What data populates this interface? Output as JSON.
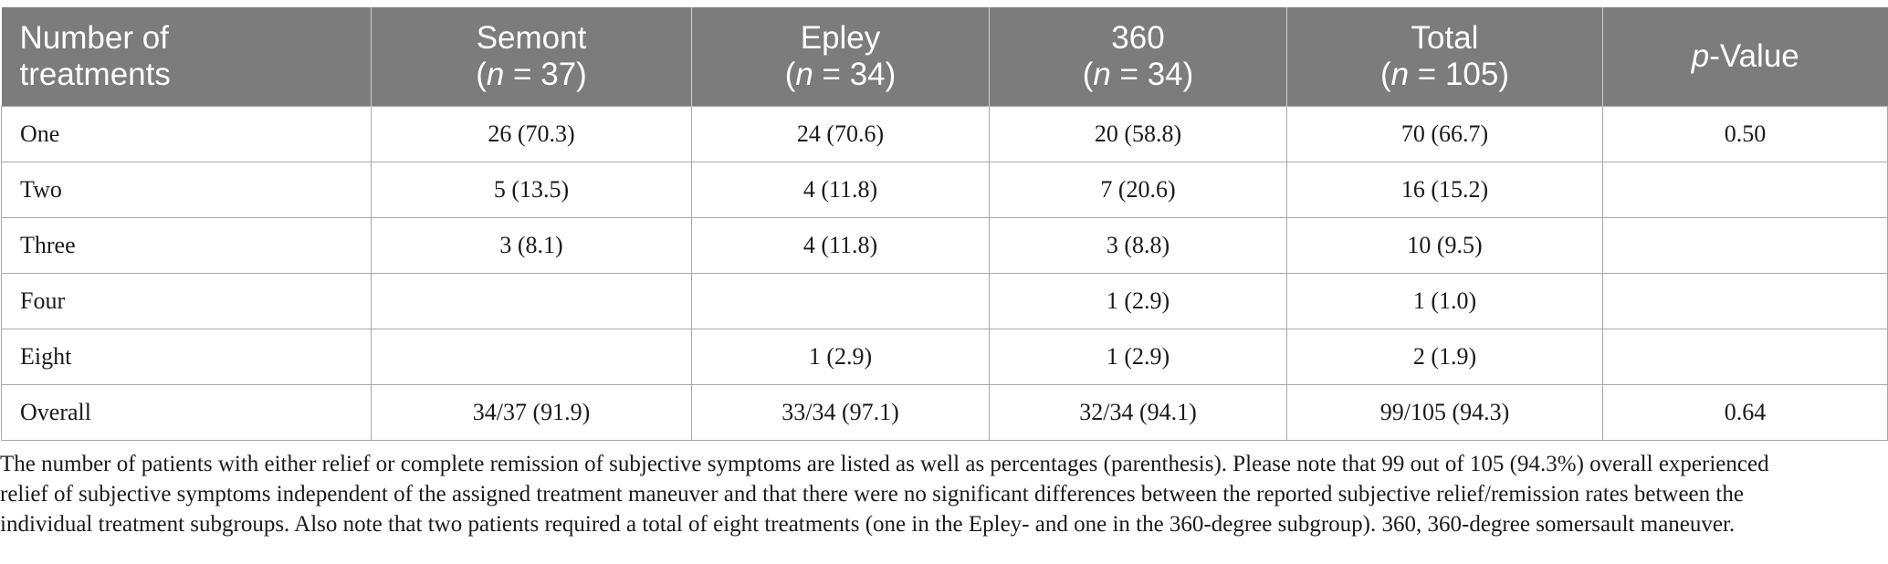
{
  "table": {
    "headers": [
      {
        "line1": "Number of",
        "line2": "treatments",
        "italic_n": ""
      },
      {
        "line1": "Semont",
        "line2_italic": "n",
        "line2_rest": " = 37)",
        "line2_open": "("
      },
      {
        "line1": "Epley",
        "line2_italic": "n",
        "line2_rest": " = 34)",
        "line2_open": "("
      },
      {
        "line1": "360",
        "line2_italic": "n",
        "line2_rest": " = 34)",
        "line2_open": "("
      },
      {
        "line1": "Total",
        "line2_italic": "n",
        "line2_rest": " = 105)",
        "line2_open": "("
      },
      {
        "italic": "p",
        "rest": "-Value"
      }
    ],
    "rows": [
      [
        "One",
        "26 (70.3)",
        "24 (70.6)",
        "20 (58.8)",
        "70 (66.7)",
        "0.50"
      ],
      [
        "Two",
        "5 (13.5)",
        "4 (11.8)",
        "7 (20.6)",
        "16 (15.2)",
        ""
      ],
      [
        "Three",
        "3 (8.1)",
        "4 (11.8)",
        "3 (8.8)",
        "10 (9.5)",
        ""
      ],
      [
        "Four",
        "",
        "",
        "1 (2.9)",
        "1 (1.0)",
        ""
      ],
      [
        "Eight",
        "",
        "1 (2.9)",
        "1 (2.9)",
        "2 (1.9)",
        ""
      ],
      [
        "Overall",
        "34/37 (91.9)",
        "33/34 (97.1)",
        "32/34 (94.1)",
        "99/105 (94.3)",
        "0.64"
      ]
    ]
  },
  "footnote": {
    "lines": [
      "The number of patients with either relief or complete remission of subjective symptoms are listed as well as percentages (parenthesis). Please note that 99 out of 105 (94.3%) overall experienced",
      "relief of subjective symptoms independent of the assigned treatment maneuver and that there were no significant differences between the reported subjective relief/remission rates between the",
      "individual treatment subgroups. Also note that two patients required a total of eight treatments (one in the Epley- and one in the 360-degree subgroup). 360, 360-degree somersault maneuver."
    ]
  },
  "colors": {
    "header_bg": "#7b7c7b",
    "header_text": "#ffffff",
    "grid": "#a8a8a8"
  }
}
